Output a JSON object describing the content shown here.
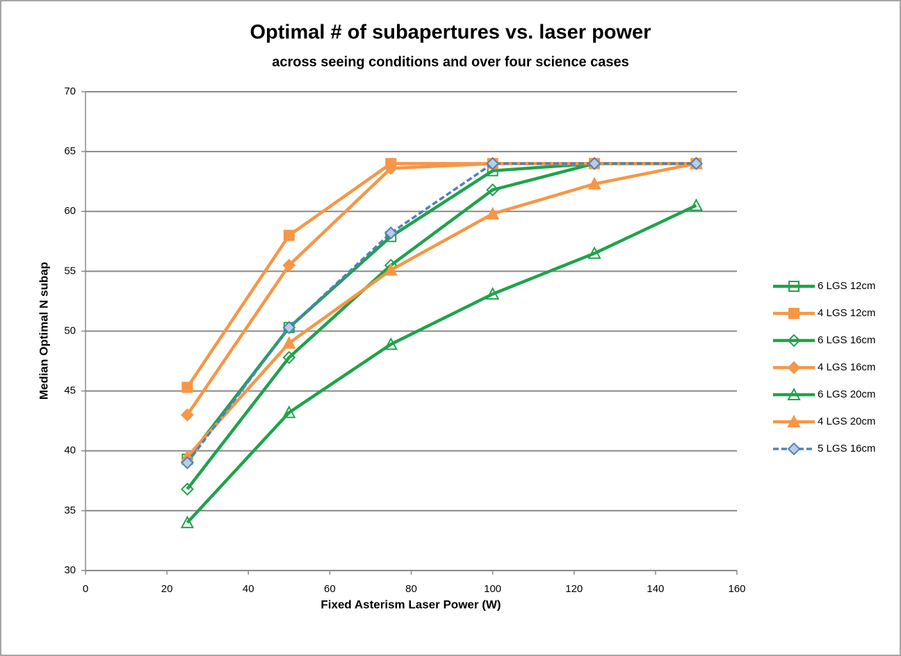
{
  "chart_data": {
    "type": "line",
    "title": "Optimal # of subapertures vs. laser power",
    "subtitle": "across seeing conditions and over four science cases",
    "x_label": "Fixed Asterism Laser Power (W)",
    "y_label": "Median Optimal N subap",
    "x": [
      25,
      50,
      75,
      100,
      125,
      150
    ],
    "series": [
      {
        "name": "6 LGS 12cm",
        "color": "#1ea34a",
        "marker": "square",
        "marker_fill": "none",
        "dash": false,
        "values": [
          39.3,
          50.3,
          57.9,
          63.4,
          64,
          64
        ]
      },
      {
        "name": "4 LGS 12cm",
        "color": "#f79646",
        "marker": "square",
        "marker_fill": "#f79646",
        "dash": false,
        "values": [
          45.3,
          58,
          64,
          64,
          64,
          64
        ]
      },
      {
        "name": "6 LGS 16cm",
        "color": "#1ea34a",
        "marker": "diamond",
        "marker_fill": "none",
        "dash": false,
        "values": [
          36.8,
          47.8,
          55.5,
          61.8,
          64,
          64
        ]
      },
      {
        "name": "4 LGS 16cm",
        "color": "#f79646",
        "marker": "diamond",
        "marker_fill": "#f79646",
        "dash": false,
        "values": [
          43,
          55.5,
          63.6,
          64,
          64,
          64
        ]
      },
      {
        "name": "6 LGS 20cm",
        "color": "#1ea34a",
        "marker": "triangle",
        "marker_fill": "none",
        "dash": false,
        "values": [
          34,
          43.2,
          48.9,
          53.1,
          56.5,
          60.5
        ]
      },
      {
        "name": "4 LGS 20cm",
        "color": "#f79646",
        "marker": "triangle",
        "marker_fill": "#f79646",
        "dash": false,
        "values": [
          39.5,
          49,
          55.1,
          59.8,
          62.3,
          64
        ]
      },
      {
        "name": "5 LGS 16cm",
        "color": "#4f81bd",
        "marker": "diamond",
        "marker_fill": "#b9cde5",
        "dash": true,
        "values": [
          39,
          50.3,
          58.2,
          64,
          64,
          64
        ]
      }
    ],
    "xlim": [
      0,
      160
    ],
    "xticks": [
      0,
      20,
      40,
      60,
      80,
      100,
      120,
      140,
      160
    ],
    "ylim": [
      30,
      70
    ],
    "yticks": [
      30,
      35,
      40,
      45,
      50,
      55,
      60,
      65,
      70
    ],
    "grid": true,
    "legend": "right"
  }
}
